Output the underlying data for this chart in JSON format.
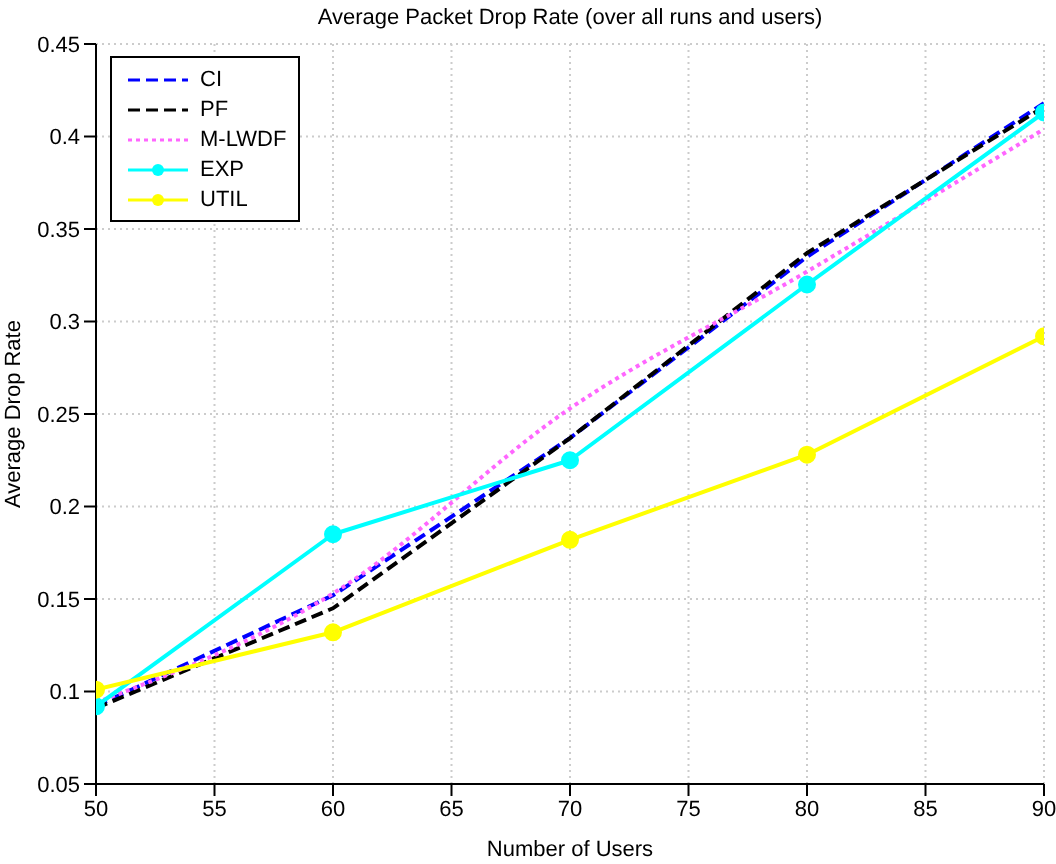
{
  "chart_data": {
    "type": "line",
    "title": "Average Packet Drop Rate (over all runs and users)",
    "xlabel": "Number of Users",
    "ylabel": "Average Drop Rate",
    "x": [
      50,
      60,
      70,
      80,
      90
    ],
    "series": [
      {
        "name": "CI",
        "color": "#0000ff",
        "line_style": "dashed",
        "marker": "none",
        "values": [
          0.092,
          0.152,
          0.237,
          0.335,
          0.418
        ]
      },
      {
        "name": "PF",
        "color": "#000000",
        "line_style": "dashed",
        "marker": "none",
        "values": [
          0.091,
          0.145,
          0.237,
          0.337,
          0.416
        ]
      },
      {
        "name": "M-LWDF",
        "color": "#ff66ff",
        "line_style": "dotted",
        "marker": "none",
        "values": [
          0.094,
          0.153,
          0.253,
          0.327,
          0.404
        ]
      },
      {
        "name": "EXP",
        "color": "#00ffff",
        "line_style": "solid",
        "marker": "circle",
        "values": [
          0.092,
          0.185,
          0.225,
          0.32,
          0.413
        ]
      },
      {
        "name": "UTIL",
        "color": "#ffff00",
        "line_style": "solid",
        "marker": "circle",
        "values": [
          0.101,
          0.132,
          0.182,
          0.228,
          0.292
        ]
      }
    ],
    "xlim": [
      50,
      90
    ],
    "xticks": [
      50,
      55,
      60,
      65,
      70,
      75,
      80,
      85,
      90
    ],
    "ylim": [
      0.05,
      0.45
    ],
    "yticks": [
      0.05,
      0.1,
      0.15,
      0.2,
      0.25,
      0.3,
      0.35,
      0.4,
      0.45
    ],
    "grid": true,
    "legend": "top left"
  }
}
